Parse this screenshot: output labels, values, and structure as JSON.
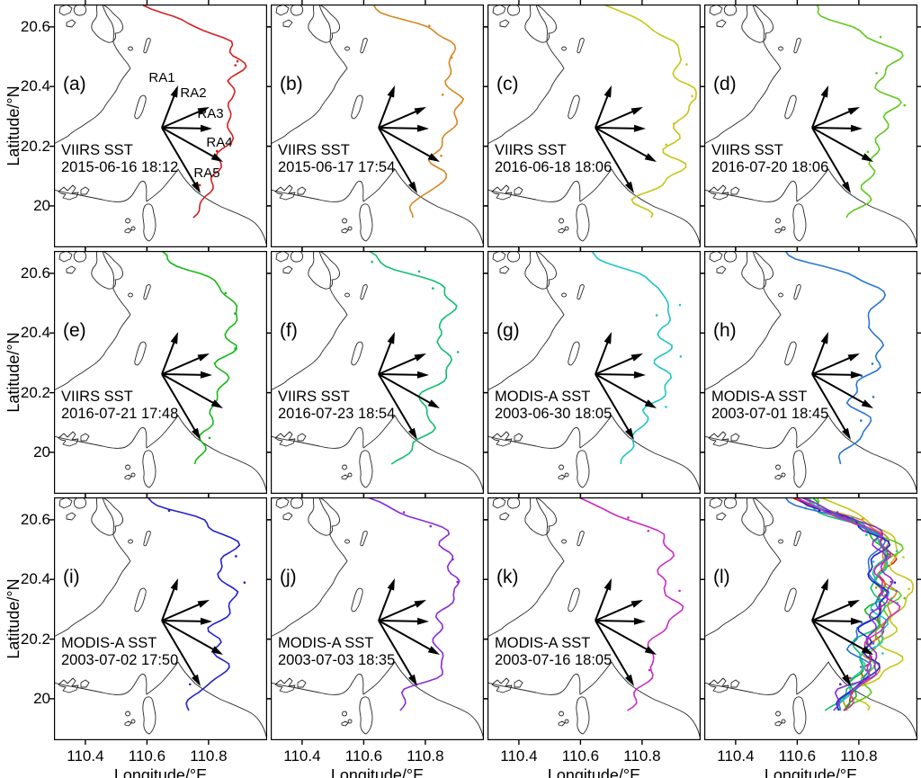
{
  "figure": {
    "y_axis": {
      "label": "Latitude/°N",
      "ticks": [
        "20.6",
        "20.4",
        "20.2",
        "20"
      ],
      "tick_values": [
        20.6,
        20.4,
        20.2,
        20
      ]
    },
    "x_axis": {
      "label": "Longitude/°E",
      "ticks": [
        "110.4",
        "110.6",
        "110.8"
      ],
      "tick_values": [
        110.4,
        110.6,
        110.8
      ]
    },
    "lon_range": [
      110.298,
      110.99
    ],
    "lat_range": [
      19.861,
      20.675
    ]
  },
  "arrow_labels": [
    "RA1",
    "RA2",
    "RA3",
    "RA4",
    "RA5"
  ],
  "colors": {
    "coastline": "#262626",
    "arrow": "#000000",
    "text": "#000000",
    "background": "#ffffff"
  },
  "panels": [
    {
      "letter": "(a)",
      "sensor": "VIIRS SST",
      "datetime": "2015-06-16 18:12",
      "color": "#d41f1f",
      "show_ra_labels": true,
      "overlay": false
    },
    {
      "letter": "(b)",
      "sensor": "VIIRS SST",
      "datetime": "2015-06-17 17:54",
      "color": "#d6861f",
      "show_ra_labels": false,
      "overlay": false
    },
    {
      "letter": "(c)",
      "sensor": "VIIRS SST",
      "datetime": "2016-06-18 18:06",
      "color": "#c6c619",
      "show_ra_labels": false,
      "overlay": false
    },
    {
      "letter": "(d)",
      "sensor": "VIIRS SST",
      "datetime": "2016-07-20 18:06",
      "color": "#5fc91e",
      "show_ra_labels": false,
      "overlay": false
    },
    {
      "letter": "(e)",
      "sensor": "VIIRS SST",
      "datetime": "2016-07-21 17:48",
      "color": "#17b817",
      "show_ra_labels": false,
      "overlay": false
    },
    {
      "letter": "(f)",
      "sensor": "VIIRS SST",
      "datetime": "2016-07-23 18:54",
      "color": "#12bd71",
      "show_ra_labels": false,
      "overlay": false
    },
    {
      "letter": "(g)",
      "sensor": "MODIS-A SST",
      "datetime": "2003-06-30 18:05",
      "color": "#1fc4c4",
      "show_ra_labels": false,
      "overlay": false
    },
    {
      "letter": "(h)",
      "sensor": "MODIS-A SST",
      "datetime": "2003-07-01 18:45",
      "color": "#2a77d0",
      "show_ra_labels": false,
      "overlay": false
    },
    {
      "letter": "(i)",
      "sensor": "MODIS-A SST",
      "datetime": "2003-07-02 17:50",
      "color": "#2121cc",
      "show_ra_labels": false,
      "overlay": false
    },
    {
      "letter": "(j)",
      "sensor": "MODIS-A SST",
      "datetime": "2003-07-03 18:35",
      "color": "#8a2bd6",
      "show_ra_labels": false,
      "overlay": false
    },
    {
      "letter": "(k)",
      "sensor": "MODIS-A SST",
      "datetime": "2003-07-16 18:05",
      "color": "#cb2ac0",
      "show_ra_labels": false,
      "overlay": false
    },
    {
      "letter": "(l)",
      "sensor": "",
      "datetime": "",
      "color": "",
      "show_ra_labels": false,
      "overlay": true
    }
  ]
}
